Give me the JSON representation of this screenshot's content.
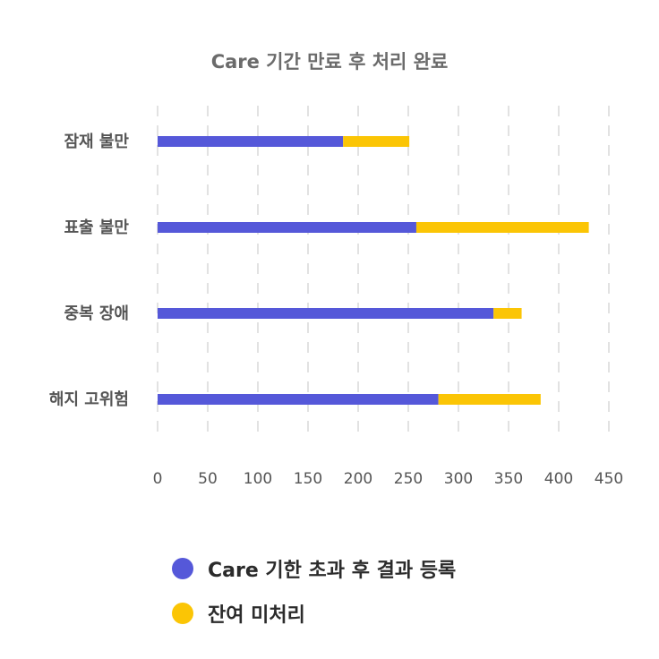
{
  "chart_data": {
    "type": "bar",
    "orientation": "horizontal",
    "stacked": true,
    "title": "Care 기간 만료 후 처리 완료",
    "categories": [
      "잠재 불만",
      "표출 불만",
      "중복 장애",
      "해지 고위험"
    ],
    "series": [
      {
        "name": "Care 기한 초과 후 결과 등록",
        "color": "#5558d9",
        "values": [
          185,
          258,
          335,
          280
        ]
      },
      {
        "name": "잔여 미처리",
        "color": "#fbc505",
        "values": [
          66,
          172,
          28,
          102
        ]
      }
    ],
    "xlim": [
      0,
      450
    ],
    "xticks": [
      0,
      50,
      100,
      150,
      200,
      250,
      300,
      350,
      400,
      450
    ],
    "grid": true,
    "legend_position": "bottom"
  }
}
